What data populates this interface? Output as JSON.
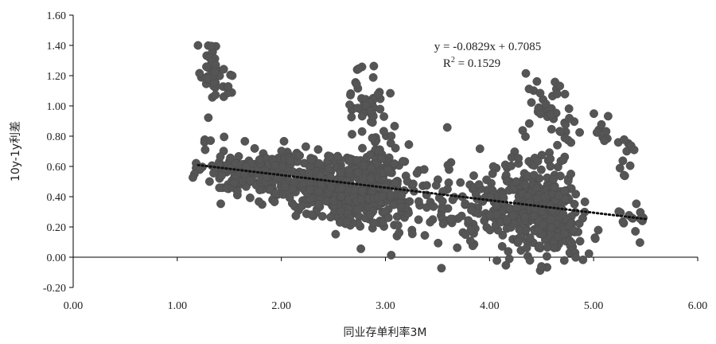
{
  "chart_data": {
    "type": "scatter",
    "xlabel": "同业存单利率3M",
    "ylabel": "10y-1y利差",
    "xlim": [
      0,
      6
    ],
    "ylim": [
      -0.2,
      1.6
    ],
    "xticks": [
      "0.00",
      "1.00",
      "2.00",
      "3.00",
      "4.00",
      "5.00",
      "6.00"
    ],
    "yticks": [
      "1.60",
      "1.40",
      "1.20",
      "1.00",
      "0.80",
      "0.60",
      "0.40",
      "0.20",
      "0.00",
      "-0.20"
    ],
    "equation": "y = -0.0829x + 0.7085",
    "r2_label": "R",
    "r2_exp": "2",
    "r2_value": " = 0.1529",
    "trendline": {
      "slope": -0.0829,
      "intercept": 0.7085,
      "x_range": [
        1.2,
        5.5
      ]
    },
    "point_color": "#555555",
    "clusters": [
      {
        "cx": 1.32,
        "cy": 1.25,
        "sx": 0.05,
        "sy": 0.1,
        "n": 40
      },
      {
        "cx": 1.45,
        "cy": 1.17,
        "sx": 0.04,
        "sy": 0.08,
        "n": 10
      },
      {
        "cx": 1.3,
        "cy": 0.72,
        "sx": 0.08,
        "sy": 0.08,
        "n": 10
      },
      {
        "cx": 1.65,
        "cy": 0.56,
        "sx": 0.2,
        "sy": 0.08,
        "n": 120
      },
      {
        "cx": 2.05,
        "cy": 0.55,
        "sx": 0.18,
        "sy": 0.08,
        "n": 100
      },
      {
        "cx": 2.45,
        "cy": 0.45,
        "sx": 0.2,
        "sy": 0.1,
        "n": 200
      },
      {
        "cx": 2.8,
        "cy": 0.45,
        "sx": 0.18,
        "sy": 0.12,
        "n": 240
      },
      {
        "cx": 2.82,
        "cy": 1.05,
        "sx": 0.08,
        "sy": 0.12,
        "n": 40
      },
      {
        "cx": 3.0,
        "cy": 0.62,
        "sx": 0.1,
        "sy": 0.12,
        "n": 50
      },
      {
        "cx": 3.2,
        "cy": 0.35,
        "sx": 0.15,
        "sy": 0.12,
        "n": 40
      },
      {
        "cx": 3.55,
        "cy": 0.35,
        "sx": 0.12,
        "sy": 0.18,
        "n": 30
      },
      {
        "cx": 3.85,
        "cy": 0.3,
        "sx": 0.15,
        "sy": 0.12,
        "n": 30
      },
      {
        "cx": 4.1,
        "cy": 0.35,
        "sx": 0.15,
        "sy": 0.15,
        "n": 80
      },
      {
        "cx": 4.4,
        "cy": 0.32,
        "sx": 0.15,
        "sy": 0.15,
        "n": 150
      },
      {
        "cx": 4.6,
        "cy": 0.3,
        "sx": 0.12,
        "sy": 0.15,
        "n": 150
      },
      {
        "cx": 4.55,
        "cy": 1.0,
        "sx": 0.12,
        "sy": 0.1,
        "n": 30
      },
      {
        "cx": 4.75,
        "cy": 0.8,
        "sx": 0.06,
        "sy": 0.12,
        "n": 15
      },
      {
        "cx": 4.85,
        "cy": 0.1,
        "sx": 0.1,
        "sy": 0.08,
        "n": 20
      },
      {
        "cx": 5.1,
        "cy": 0.8,
        "sx": 0.08,
        "sy": 0.08,
        "n": 10
      },
      {
        "cx": 5.3,
        "cy": 0.65,
        "sx": 0.05,
        "sy": 0.1,
        "n": 10
      },
      {
        "cx": 5.4,
        "cy": 0.25,
        "sx": 0.08,
        "sy": 0.05,
        "n": 15
      }
    ]
  }
}
